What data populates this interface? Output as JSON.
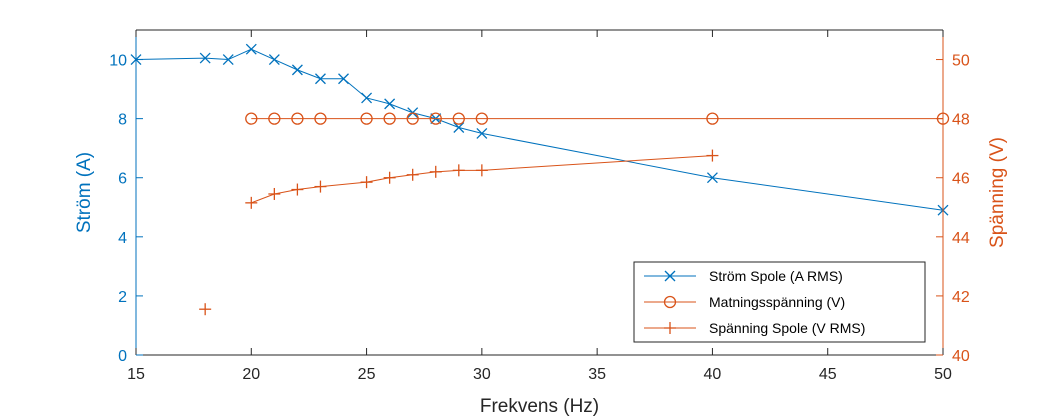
{
  "chart_data": {
    "type": "line",
    "xlabel": "Frekvens (Hz)",
    "ylabel_left": "Ström (A)",
    "ylabel_right": "Spänning (V)",
    "xlim": [
      15,
      50
    ],
    "ylim_left": [
      0,
      11
    ],
    "ylim_right": [
      40,
      51
    ],
    "x_ticks": [
      15,
      20,
      25,
      30,
      35,
      40,
      45,
      50
    ],
    "y_ticks_left": [
      0,
      2,
      4,
      6,
      8,
      10
    ],
    "y_ticks_right": [
      40,
      42,
      44,
      46,
      48,
      50
    ],
    "grid": false,
    "legend_position": "bottom-right",
    "colors": {
      "left_axis": "#0072BD",
      "right_axis": "#D95319",
      "axis_black": "#262626"
    },
    "series": [
      {
        "name": "Ström Spole (A RMS)",
        "axis": "left",
        "marker": "x",
        "line": true,
        "color": "#0072BD",
        "points": [
          [
            15,
            10.0
          ],
          [
            18,
            10.05
          ],
          [
            19,
            10.0
          ],
          [
            20,
            10.35
          ],
          [
            21,
            10.0
          ],
          [
            22,
            9.65
          ],
          [
            23,
            9.35
          ],
          [
            24,
            9.35
          ],
          [
            25,
            8.7
          ],
          [
            26,
            8.5
          ],
          [
            27,
            8.2
          ],
          [
            28,
            8.0
          ],
          [
            29,
            7.7
          ],
          [
            30,
            7.5
          ],
          [
            40,
            6.0
          ],
          [
            50,
            4.9
          ]
        ]
      },
      {
        "name": "Matningsspänning (V)",
        "axis": "right",
        "marker": "o",
        "line": true,
        "color": "#D95319",
        "points": [
          [
            20,
            48
          ],
          [
            21,
            48
          ],
          [
            22,
            48
          ],
          [
            23,
            48
          ],
          [
            25,
            48
          ],
          [
            26,
            48
          ],
          [
            27,
            48
          ],
          [
            28,
            48
          ],
          [
            29,
            48
          ],
          [
            30,
            48
          ],
          [
            40,
            48
          ],
          [
            50,
            48
          ]
        ]
      },
      {
        "name": "Spänning Spole (V RMS)",
        "axis": "right",
        "marker": "+",
        "line": true,
        "color": "#D95319",
        "isolated_points": [
          [
            18,
            41.55
          ]
        ],
        "points": [
          [
            20,
            45.15
          ],
          [
            21,
            45.45
          ],
          [
            22,
            45.6
          ],
          [
            23,
            45.7
          ],
          [
            25,
            45.85
          ],
          [
            26,
            46.0
          ],
          [
            27,
            46.1
          ],
          [
            28,
            46.2
          ],
          [
            29,
            46.25
          ],
          [
            30,
            46.25
          ],
          [
            40,
            46.75
          ]
        ]
      }
    ]
  }
}
